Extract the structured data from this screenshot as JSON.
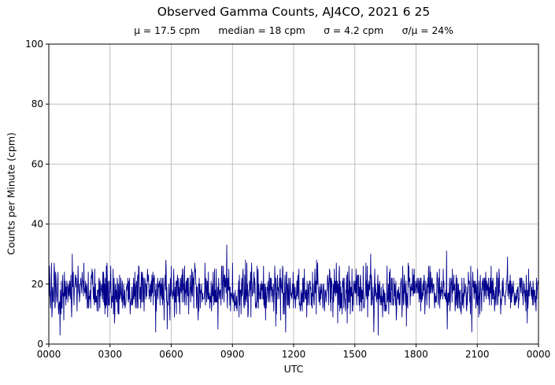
{
  "figure": {
    "title": "Observed Gamma Counts, AJ4CO, 2021 6 25",
    "subtitle": "μ = 17.5 cpm      median = 18 cpm      σ = 4.2 cpm      σ/μ = 24%",
    "xlabel": "UTC",
    "ylabel": "Counts per Minute (cpm)"
  },
  "chart_data": {
    "type": "line",
    "title": "Observed Gamma Counts, AJ4CO, 2021 6 25",
    "subtitle_stats": {
      "mu_cpm": 17.5,
      "median_cpm": 18,
      "sigma_cpm": 4.2,
      "sigma_over_mu_pct": 24
    },
    "xlabel": "UTC",
    "ylabel": "Counts per Minute (cpm)",
    "x_tick_labels": [
      "0000",
      "0300",
      "0600",
      "0900",
      "1200",
      "1500",
      "1800",
      "2100",
      "0000"
    ],
    "y_ticks": [
      0,
      20,
      40,
      60,
      80,
      100
    ],
    "ylim": [
      0,
      100
    ],
    "x_span_minutes": 1440,
    "grid": true,
    "legend": "none",
    "line_color": "#00008B",
    "grid_color": "#b0b0b0",
    "frame_color": "#000000",
    "series": [
      {
        "name": "observed-gamma-counts",
        "n_points": 1440,
        "values_are_integer_counts": true,
        "stats": {
          "mean_cpm": 17.5,
          "median_cpm": 18,
          "sigma_cpm": 4.2,
          "min_cpm_approx": 4,
          "max_cpm_approx": 34
        },
        "generator": {
          "distribution": "gaussian",
          "seed": 20210625
        }
      }
    ]
  }
}
